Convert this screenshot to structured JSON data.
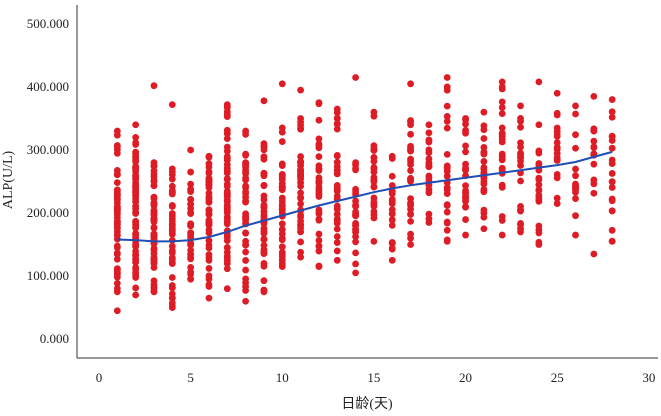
{
  "chart_data": {
    "type": "scatter",
    "title": "",
    "xlabel": "日龄(天)",
    "ylabel": "ALP(U/L)",
    "xlim": [
      -1.2,
      30.5
    ],
    "ylim": [
      -30,
      530
    ],
    "xticks": [
      0,
      5,
      10,
      15,
      20,
      25,
      30
    ],
    "xtick_labels": [
      "0",
      "5",
      "10",
      "15",
      "20",
      "25",
      "30"
    ],
    "yticks": [
      0,
      100,
      200,
      300,
      400,
      500
    ],
    "ytick_labels": [
      "0.000",
      "100.000",
      "200.000",
      "300.000",
      "400.000",
      "500.000"
    ],
    "grid": false,
    "legend": "none",
    "series": [
      {
        "kind": "points",
        "color": "#dd1c25",
        "columns": [
          {
            "x": 1,
            "ymin": 75,
            "ymax": 330,
            "count": 60,
            "extra": [
              45
            ]
          },
          {
            "x": 2,
            "ymin": 70,
            "ymax": 320,
            "count": 65,
            "extra": [
              340
            ]
          },
          {
            "x": 3,
            "ymin": 75,
            "ymax": 280,
            "count": 58,
            "extra": [
              402
            ]
          },
          {
            "x": 4,
            "ymin": 50,
            "ymax": 270,
            "count": 45,
            "extra": [
              372
            ]
          },
          {
            "x": 5,
            "ymin": 95,
            "ymax": 265,
            "count": 30,
            "extra": [
              300
            ]
          },
          {
            "x": 6,
            "ymin": 65,
            "ymax": 290,
            "count": 48,
            "extra": []
          },
          {
            "x": 7,
            "ymin": 80,
            "ymax": 372,
            "count": 60,
            "extra": []
          },
          {
            "x": 8,
            "ymin": 60,
            "ymax": 330,
            "count": 40,
            "extra": []
          },
          {
            "x": 9,
            "ymin": 75,
            "ymax": 310,
            "count": 40,
            "extra": [
              378
            ]
          },
          {
            "x": 10,
            "ymin": 115,
            "ymax": 335,
            "count": 40,
            "extra": [
              405
            ]
          },
          {
            "x": 11,
            "ymin": 130,
            "ymax": 350,
            "count": 38,
            "extra": [
              395
            ]
          },
          {
            "x": 12,
            "ymin": 115,
            "ymax": 375,
            "count": 34,
            "extra": []
          },
          {
            "x": 13,
            "ymin": 125,
            "ymax": 365,
            "count": 30,
            "extra": []
          },
          {
            "x": 14,
            "ymin": 105,
            "ymax": 280,
            "count": 24,
            "extra": [
              415
            ]
          },
          {
            "x": 15,
            "ymin": 155,
            "ymax": 360,
            "count": 24,
            "extra": []
          },
          {
            "x": 16,
            "ymin": 125,
            "ymax": 290,
            "count": 22,
            "extra": []
          },
          {
            "x": 17,
            "ymin": 150,
            "ymax": 405,
            "count": 26,
            "extra": []
          },
          {
            "x": 18,
            "ymin": 185,
            "ymax": 340,
            "count": 20,
            "extra": []
          },
          {
            "x": 19,
            "ymin": 155,
            "ymax": 400,
            "count": 22,
            "extra": [
              415
            ]
          },
          {
            "x": 20,
            "ymin": 165,
            "ymax": 350,
            "count": 22,
            "extra": []
          },
          {
            "x": 21,
            "ymin": 175,
            "ymax": 360,
            "count": 22,
            "extra": []
          },
          {
            "x": 22,
            "ymin": 165,
            "ymax": 400,
            "count": 24,
            "extra": [
              408
            ]
          },
          {
            "x": 23,
            "ymin": 170,
            "ymax": 370,
            "count": 20,
            "extra": []
          },
          {
            "x": 24,
            "ymin": 150,
            "ymax": 340,
            "count": 20,
            "extra": [
              408
            ]
          },
          {
            "x": 25,
            "ymin": 215,
            "ymax": 390,
            "count": 16,
            "extra": []
          },
          {
            "x": 26,
            "ymin": 165,
            "ymax": 370,
            "count": 14,
            "extra": []
          },
          {
            "x": 27,
            "ymin": 135,
            "ymax": 385,
            "count": 14,
            "extra": []
          },
          {
            "x": 28,
            "ymin": 155,
            "ymax": 380,
            "count": 18,
            "extra": []
          }
        ]
      },
      {
        "kind": "fit-line",
        "color": "#1f4fb5",
        "x": [
          1,
          2,
          3,
          4,
          5,
          6,
          7,
          8,
          9,
          10,
          11,
          12,
          13,
          14,
          15,
          16,
          17,
          18,
          19,
          20,
          21,
          22,
          23,
          24,
          25,
          26,
          27,
          28
        ],
        "y": [
          158,
          157,
          155,
          155,
          157,
          162,
          170,
          180,
          188,
          196,
          204,
          212,
          219,
          226,
          233,
          239,
          244,
          248,
          252,
          256,
          260,
          264,
          268,
          272,
          276,
          281,
          289,
          297
        ]
      }
    ]
  }
}
